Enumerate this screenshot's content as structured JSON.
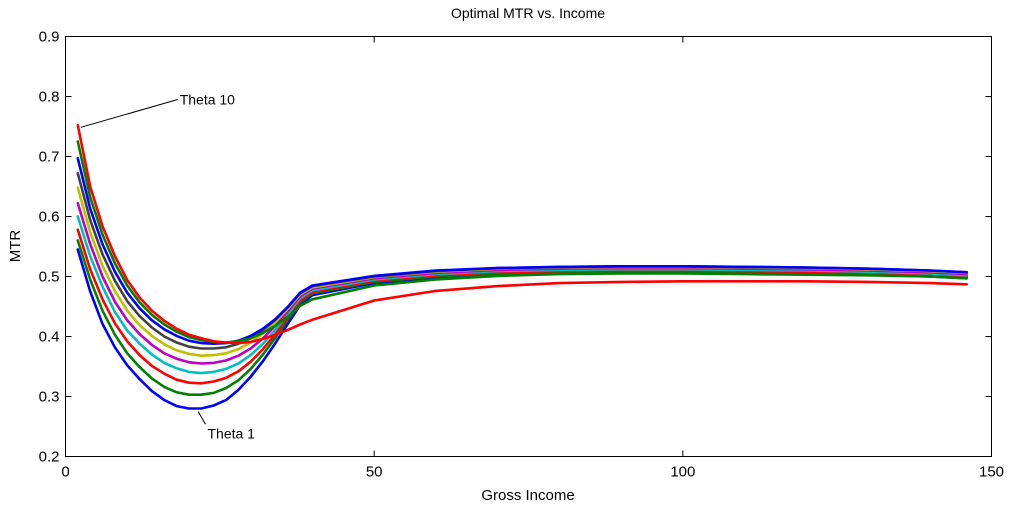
{
  "chart_data": {
    "type": "line",
    "title": "Optimal MTR vs. Income",
    "xlabel": "Gross Income",
    "ylabel": "MTR",
    "xlim": [
      0,
      150
    ],
    "ylim": [
      0.2,
      0.9
    ],
    "xticks": [
      0,
      50,
      100,
      150
    ],
    "yticks": [
      0.2,
      0.3,
      0.4,
      0.5,
      0.6,
      0.7,
      0.8,
      0.9
    ],
    "grid": false,
    "legend": "none",
    "x": [
      2,
      4,
      6,
      8,
      10,
      12,
      14,
      16,
      18,
      20,
      22,
      24,
      26,
      28,
      30,
      32,
      34,
      36,
      38,
      40,
      50,
      60,
      70,
      80,
      90,
      100,
      110,
      120,
      130,
      140,
      146
    ],
    "series": [
      {
        "color": "#0000ff",
        "values": [
          0.545,
          0.475,
          0.421,
          0.382,
          0.352,
          0.329,
          0.309,
          0.294,
          0.284,
          0.28,
          0.28,
          0.285,
          0.294,
          0.311,
          0.333,
          0.359,
          0.389,
          0.421,
          0.452,
          0.469,
          0.489,
          0.498,
          0.503,
          0.506,
          0.507,
          0.507,
          0.506,
          0.505,
          0.503,
          0.5,
          0.497
        ]
      },
      {
        "color": "#008000",
        "values": [
          0.56,
          0.495,
          0.443,
          0.403,
          0.372,
          0.349,
          0.33,
          0.316,
          0.307,
          0.303,
          0.303,
          0.306,
          0.314,
          0.327,
          0.346,
          0.37,
          0.398,
          0.428,
          0.457,
          0.472,
          0.491,
          0.5,
          0.505,
          0.507,
          0.508,
          0.508,
          0.507,
          0.506,
          0.504,
          0.501,
          0.498
        ]
      },
      {
        "color": "#ff0000",
        "values": [
          0.578,
          0.512,
          0.462,
          0.422,
          0.392,
          0.369,
          0.351,
          0.338,
          0.328,
          0.323,
          0.322,
          0.325,
          0.331,
          0.342,
          0.358,
          0.379,
          0.404,
          0.432,
          0.46,
          0.474,
          0.493,
          0.502,
          0.507,
          0.509,
          0.51,
          0.51,
          0.509,
          0.508,
          0.506,
          0.503,
          0.5
        ]
      },
      {
        "color": "#00bfbf",
        "values": [
          0.6,
          0.534,
          0.483,
          0.441,
          0.41,
          0.388,
          0.37,
          0.356,
          0.347,
          0.341,
          0.339,
          0.341,
          0.346,
          0.355,
          0.369,
          0.388,
          0.411,
          0.437,
          0.464,
          0.477,
          0.495,
          0.504,
          0.509,
          0.511,
          0.512,
          0.512,
          0.511,
          0.51,
          0.508,
          0.505,
          0.502
        ]
      },
      {
        "color": "#bf00bf",
        "values": [
          0.622,
          0.554,
          0.5,
          0.458,
          0.427,
          0.404,
          0.386,
          0.372,
          0.363,
          0.357,
          0.355,
          0.356,
          0.36,
          0.368,
          0.38,
          0.397,
          0.418,
          0.442,
          0.467,
          0.48,
          0.497,
          0.506,
          0.511,
          0.513,
          0.514,
          0.514,
          0.513,
          0.512,
          0.51,
          0.507,
          0.504
        ]
      },
      {
        "color": "#bfbf00",
        "values": [
          0.648,
          0.574,
          0.518,
          0.476,
          0.443,
          0.419,
          0.401,
          0.387,
          0.377,
          0.371,
          0.368,
          0.369,
          0.372,
          0.379,
          0.39,
          0.405,
          0.424,
          0.446,
          0.47,
          0.482,
          0.499,
          0.508,
          0.513,
          0.515,
          0.516,
          0.516,
          0.515,
          0.514,
          0.512,
          0.509,
          0.506
        ]
      },
      {
        "color": "#404040",
        "values": [
          0.672,
          0.594,
          0.537,
          0.493,
          0.459,
          0.434,
          0.415,
          0.4,
          0.39,
          0.383,
          0.38,
          0.38,
          0.382,
          0.388,
          0.397,
          0.411,
          0.428,
          0.449,
          0.472,
          0.484,
          0.5,
          0.509,
          0.514,
          0.516,
          0.517,
          0.517,
          0.516,
          0.515,
          0.513,
          0.51,
          0.507
        ]
      },
      {
        "color": "#0000ff",
        "values": [
          0.697,
          0.613,
          0.554,
          0.508,
          0.473,
          0.447,
          0.427,
          0.412,
          0.401,
          0.393,
          0.389,
          0.388,
          0.389,
          0.393,
          0.401,
          0.413,
          0.429,
          0.449,
          0.473,
          0.485,
          0.501,
          0.51,
          0.514,
          0.516,
          0.517,
          0.517,
          0.516,
          0.515,
          0.513,
          0.51,
          0.507
        ]
      },
      {
        "color": "#008000",
        "values": [
          0.725,
          0.632,
          0.57,
          0.522,
          0.485,
          0.457,
          0.436,
          0.42,
          0.408,
          0.399,
          0.394,
          0.391,
          0.39,
          0.392,
          0.397,
          0.406,
          0.418,
          0.433,
          0.451,
          0.462,
          0.485,
          0.495,
          0.501,
          0.504,
          0.505,
          0.505,
          0.504,
          0.503,
          0.502,
          0.5,
          0.497
        ]
      },
      {
        "color": "#ff0000",
        "values": [
          0.752,
          0.65,
          0.584,
          0.534,
          0.494,
          0.465,
          0.443,
          0.426,
          0.413,
          0.403,
          0.397,
          0.392,
          0.39,
          0.389,
          0.391,
          0.396,
          0.403,
          0.411,
          0.42,
          0.428,
          0.46,
          0.476,
          0.484,
          0.489,
          0.491,
          0.492,
          0.492,
          0.492,
          0.491,
          0.489,
          0.487
        ]
      }
    ],
    "annotations": [
      {
        "text": "Theta 10",
        "x": 2,
        "y": 0.752,
        "label_x": 18.5,
        "label_y": 0.795
      },
      {
        "text": "Theta 1",
        "x": 21,
        "y": 0.28,
        "label_x": 23,
        "label_y": 0.237
      }
    ]
  }
}
